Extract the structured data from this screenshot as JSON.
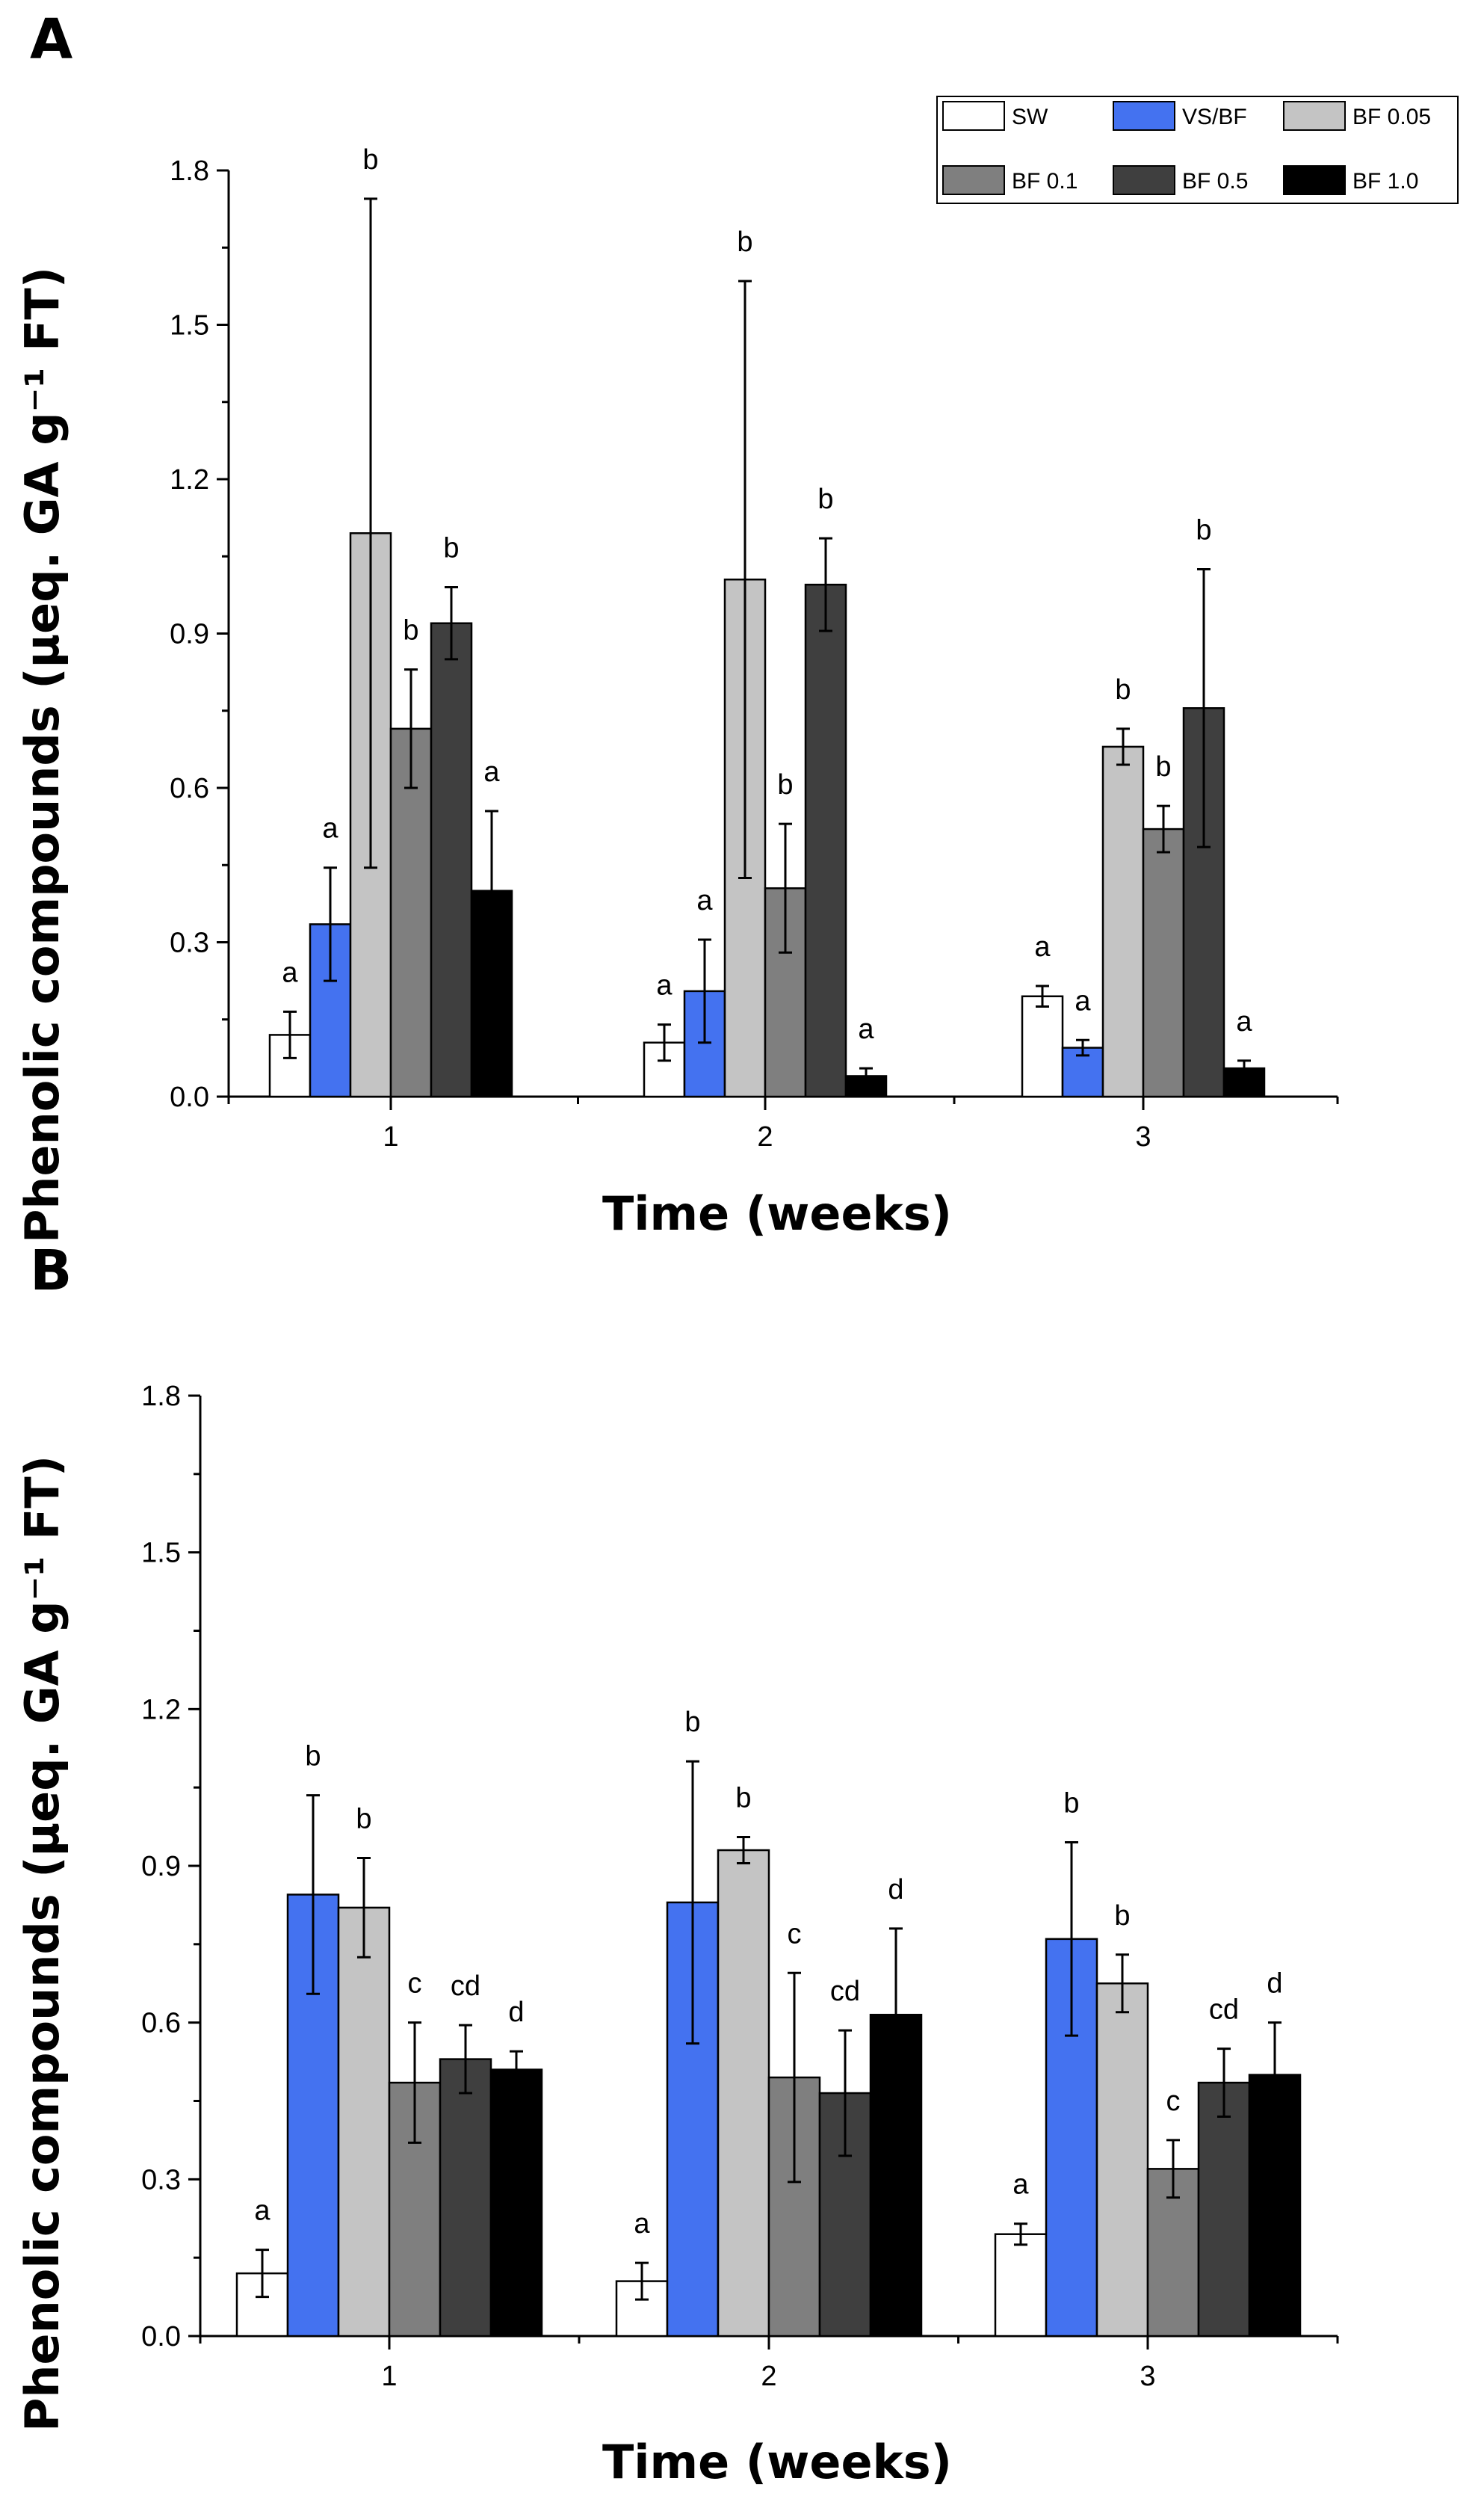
{
  "colors": {
    "SW": "#ffffff",
    "VS/BF": "#4472f0",
    "BF 0.05": "#c4c4c4",
    "BF 0.1": "#7f7f7f",
    "BF 0.5": "#3f3f3f",
    "BF 1.0": "#000000"
  },
  "legend": [
    "SW",
    "VS/BF",
    "BF 0.05",
    "BF 0.1",
    "BF 0.5",
    "BF 1.0"
  ],
  "chart_data": [
    {
      "panel": "A",
      "type": "bar",
      "xlabel": "Time (weeks)",
      "ylabel": "Phenolic compounds (μeq. GA g⁻¹ FT)",
      "ylim": [
        0,
        1.8
      ],
      "yticks": [
        "0.0",
        "0.3",
        "0.6",
        "0.9",
        "1.2",
        "1.5",
        "1.8"
      ],
      "categories": [
        "1",
        "2",
        "3"
      ],
      "series": [
        {
          "name": "SW",
          "values": [
            0.12,
            0.105,
            0.195
          ],
          "errors": [
            0.045,
            0.035,
            0.02
          ],
          "letters": [
            "a",
            "a",
            "a"
          ]
        },
        {
          "name": "VS/BF",
          "values": [
            0.335,
            0.205,
            0.095
          ],
          "errors": [
            0.11,
            0.1,
            0.015
          ],
          "letters": [
            "a",
            "a",
            "a"
          ]
        },
        {
          "name": "BF 0.05",
          "values": [
            1.095,
            1.005,
            0.68
          ],
          "errors": [
            0.65,
            0.58,
            0.035
          ],
          "letters": [
            "b",
            "b",
            "b"
          ]
        },
        {
          "name": "BF 0.1",
          "values": [
            0.715,
            0.405,
            0.52
          ],
          "errors": [
            0.115,
            0.125,
            0.045
          ],
          "letters": [
            "b",
            "b",
            "b"
          ]
        },
        {
          "name": "BF 0.5",
          "values": [
            0.92,
            0.995,
            0.755
          ],
          "errors": [
            0.07,
            0.09,
            0.27
          ],
          "letters": [
            "b",
            "b",
            "b"
          ]
        },
        {
          "name": "BF 1.0",
          "values": [
            0.4,
            0.04,
            0.055
          ],
          "errors": [
            0.155,
            0.015,
            0.015
          ],
          "letters": [
            "a",
            "a",
            "a"
          ]
        }
      ]
    },
    {
      "panel": "B",
      "type": "bar",
      "xlabel": "Time (weeks)",
      "ylabel": "Phenolic compounds (μeq. GA g⁻¹ FT)",
      "ylim": [
        0,
        1.8
      ],
      "yticks": [
        "0.0",
        "0.3",
        "0.6",
        "0.9",
        "1.2",
        "1.5",
        "1.8"
      ],
      "categories": [
        "1",
        "2",
        "3"
      ],
      "series": [
        {
          "name": "SW",
          "values": [
            0.12,
            0.105,
            0.195
          ],
          "errors": [
            0.045,
            0.035,
            0.02
          ],
          "letters": [
            "a",
            "a",
            "a"
          ]
        },
        {
          "name": "VS/BF",
          "values": [
            0.845,
            0.83,
            0.76
          ],
          "errors": [
            0.19,
            0.27,
            0.185
          ],
          "letters": [
            "b",
            "b",
            "b"
          ]
        },
        {
          "name": "BF 0.05",
          "values": [
            0.82,
            0.93,
            0.675
          ],
          "errors": [
            0.095,
            0.025,
            0.055
          ],
          "letters": [
            "b",
            "b",
            "b"
          ]
        },
        {
          "name": "BF 0.1",
          "values": [
            0.485,
            0.495,
            0.32
          ],
          "errors": [
            0.115,
            0.2,
            0.055
          ],
          "letters": [
            "c",
            "c",
            "c"
          ]
        },
        {
          "name": "BF 0.5",
          "values": [
            0.53,
            0.465,
            0.485
          ],
          "errors": [
            0.065,
            0.12,
            0.065
          ],
          "letters": [
            "cd",
            "cd",
            "cd"
          ]
        },
        {
          "name": "BF 1.0",
          "values": [
            0.51,
            0.615,
            0.5
          ],
          "errors": [
            0.035,
            0.165,
            0.1
          ],
          "letters": [
            "d",
            "d",
            "d"
          ]
        }
      ]
    }
  ]
}
